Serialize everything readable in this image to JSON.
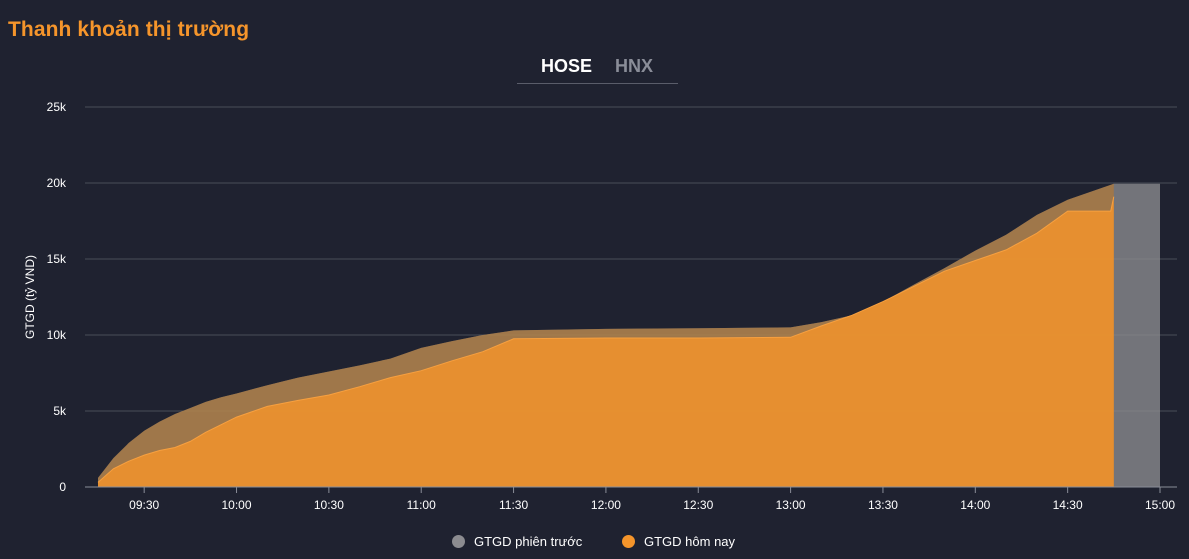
{
  "header": {
    "title": "Thanh khoản thị trường"
  },
  "tabs": [
    {
      "label": "HOSE",
      "active": true
    },
    {
      "label": "HNX",
      "active": false
    }
  ],
  "colors": {
    "background": "#1f2230",
    "accent": "#f5952b",
    "today": "#f5952b",
    "previous": "#8c8c90",
    "grid": "#4a4d58"
  },
  "chart_data": {
    "type": "area",
    "title": "",
    "xlabel": "",
    "ylabel": "GTGD (tỷ VND)",
    "y_ticks": [
      0,
      5000,
      10000,
      15000,
      20000,
      25000
    ],
    "y_tick_labels": [
      "0",
      "5k",
      "10k",
      "15k",
      "20k",
      "25k"
    ],
    "ylim": [
      0,
      25000
    ],
    "x_ticks": [
      "09:30",
      "10:00",
      "10:30",
      "11:00",
      "11:30",
      "12:00",
      "12:30",
      "13:00",
      "13:30",
      "14:00",
      "14:30",
      "15:00"
    ],
    "xlim": [
      "09:15",
      "15:03"
    ],
    "grid": true,
    "legend": "bottom-center",
    "series": [
      {
        "name": "GTGD phiên trước",
        "color": "#8c8c90",
        "points": [
          [
            "09:15",
            600
          ],
          [
            "09:20",
            1900
          ],
          [
            "09:25",
            2900
          ],
          [
            "09:30",
            3700
          ],
          [
            "09:35",
            4300
          ],
          [
            "09:40",
            4800
          ],
          [
            "09:45",
            5200
          ],
          [
            "09:50",
            5600
          ],
          [
            "09:55",
            5900
          ],
          [
            "10:00",
            6150
          ],
          [
            "10:10",
            6700
          ],
          [
            "10:20",
            7200
          ],
          [
            "10:30",
            7600
          ],
          [
            "10:40",
            8000
          ],
          [
            "10:50",
            8450
          ],
          [
            "11:00",
            9150
          ],
          [
            "11:10",
            9600
          ],
          [
            "11:20",
            10000
          ],
          [
            "11:30",
            10300
          ],
          [
            "12:00",
            10400
          ],
          [
            "12:30",
            10450
          ],
          [
            "13:00",
            10500
          ],
          [
            "13:10",
            10850
          ],
          [
            "13:20",
            11300
          ],
          [
            "13:30",
            12200
          ],
          [
            "13:40",
            13300
          ],
          [
            "13:50",
            14400
          ],
          [
            "14:00",
            15550
          ],
          [
            "14:10",
            16600
          ],
          [
            "14:20",
            17900
          ],
          [
            "14:30",
            18900
          ],
          [
            "14:45",
            19950
          ],
          [
            "15:00",
            19950
          ]
        ]
      },
      {
        "name": "GTGD hôm nay",
        "color": "#f5952b",
        "points": [
          [
            "09:15",
            300
          ],
          [
            "09:20",
            1200
          ],
          [
            "09:25",
            1700
          ],
          [
            "09:30",
            2100
          ],
          [
            "09:35",
            2400
          ],
          [
            "09:40",
            2600
          ],
          [
            "09:45",
            3000
          ],
          [
            "09:50",
            3600
          ],
          [
            "09:55",
            4100
          ],
          [
            "10:00",
            4600
          ],
          [
            "10:10",
            5300
          ],
          [
            "10:20",
            5700
          ],
          [
            "10:30",
            6050
          ],
          [
            "10:40",
            6600
          ],
          [
            "10:50",
            7200
          ],
          [
            "11:00",
            7650
          ],
          [
            "11:10",
            8300
          ],
          [
            "11:20",
            8900
          ],
          [
            "11:30",
            9750
          ],
          [
            "12:00",
            9800
          ],
          [
            "12:30",
            9800
          ],
          [
            "13:00",
            9850
          ],
          [
            "13:10",
            10600
          ],
          [
            "13:20",
            11300
          ],
          [
            "13:30",
            12200
          ],
          [
            "13:40",
            13200
          ],
          [
            "13:50",
            14200
          ],
          [
            "14:00",
            14900
          ],
          [
            "14:10",
            15600
          ],
          [
            "14:20",
            16700
          ],
          [
            "14:30",
            18150
          ],
          [
            "14:44",
            18150
          ],
          [
            "14:45",
            19100
          ]
        ]
      }
    ]
  }
}
